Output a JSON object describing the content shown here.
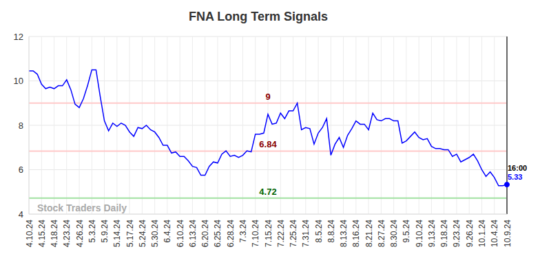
{
  "chart_data": {
    "type": "line",
    "title": "FNA Long Term Signals",
    "watermark": "Stock Traders Daily",
    "color": "#0000ff",
    "ylim": [
      4,
      12
    ],
    "yticks": [
      4,
      6,
      8,
      10,
      12
    ],
    "grid": true,
    "last_label": "16:00",
    "signals": [
      {
        "value": 9,
        "color": "#ffc8c8",
        "label_color": "#8b0000"
      },
      {
        "value": 6.84,
        "color": "#ffc8c8",
        "label_color": "#8b0000"
      },
      {
        "value": 4.72,
        "color": "#a0e0a0",
        "label_color": "#006400"
      }
    ],
    "categories": [
      "4.10.24",
      null,
      null,
      "4.15.24",
      null,
      null,
      "4.18.24",
      null,
      null,
      "4.23.24",
      null,
      null,
      "4.26.24",
      null,
      null,
      "5.3.24",
      null,
      null,
      "5.9.24",
      null,
      null,
      "5.14.24",
      null,
      null,
      "5.17.24",
      null,
      null,
      "5.24.24",
      null,
      null,
      "5.30.24",
      null,
      null,
      "6.4.24",
      null,
      null,
      "6.10.24",
      null,
      null,
      "6.13.24",
      null,
      null,
      "6.20.24",
      null,
      null,
      "6.25.24",
      null,
      null,
      "6.28.24",
      null,
      null,
      "7.3.24",
      null,
      null,
      "7.10.24",
      null,
      null,
      "7.15.24",
      null,
      null,
      "7.22.24",
      null,
      null,
      "7.25.24",
      null,
      null,
      "7.31.24",
      null,
      null,
      "8.5.24",
      null,
      null,
      "8.8.24",
      null,
      null,
      "8.13.24",
      null,
      null,
      "8.16.24",
      null,
      null,
      "8.21.24",
      null,
      null,
      "8.27.24",
      null,
      null,
      "8.30.24",
      null,
      null,
      "9.5.24",
      null,
      null,
      "9.10.24",
      null,
      null,
      "9.13.24",
      null,
      null,
      "9.18.24",
      null,
      null,
      "9.23.24",
      null,
      null,
      "9.26.24",
      null,
      null,
      "10.1.24",
      null,
      null,
      "10.4.24",
      null,
      null,
      "10.9.24"
    ],
    "values": [
      10.45,
      10.45,
      10.3,
      9.85,
      9.65,
      9.72,
      9.65,
      9.78,
      9.78,
      10.05,
      9.6,
      8.95,
      8.8,
      9.2,
      9.8,
      10.5,
      10.5,
      9.3,
      8.2,
      7.75,
      8.1,
      7.95,
      8.1,
      8.0,
      7.7,
      7.5,
      7.9,
      7.85,
      8.0,
      7.8,
      7.7,
      7.45,
      7.1,
      7.1,
      6.75,
      6.8,
      6.6,
      6.6,
      6.4,
      6.15,
      6.1,
      5.75,
      5.75,
      6.15,
      6.35,
      6.3,
      6.7,
      6.85,
      6.6,
      6.65,
      6.55,
      6.65,
      6.85,
      6.8,
      7.6,
      7.6,
      7.65,
      8.5,
      8.05,
      8.1,
      8.55,
      8.3,
      8.65,
      8.65,
      9.0,
      7.8,
      7.9,
      7.85,
      7.15,
      7.65,
      7.9,
      8.3,
      6.65,
      7.15,
      7.45,
      7.0,
      7.55,
      7.85,
      8.2,
      8.05,
      8.05,
      7.8,
      8.55,
      8.25,
      8.2,
      8.3,
      8.3,
      8.2,
      8.2,
      7.2,
      7.3,
      7.5,
      7.7,
      7.45,
      7.35,
      7.4,
      7.05,
      6.95,
      6.95,
      6.9,
      6.9,
      6.6,
      6.7,
      6.35,
      6.45,
      6.55,
      6.7,
      6.4,
      6.0,
      5.7,
      5.9,
      5.65,
      5.28,
      5.28,
      5.33
    ]
  }
}
